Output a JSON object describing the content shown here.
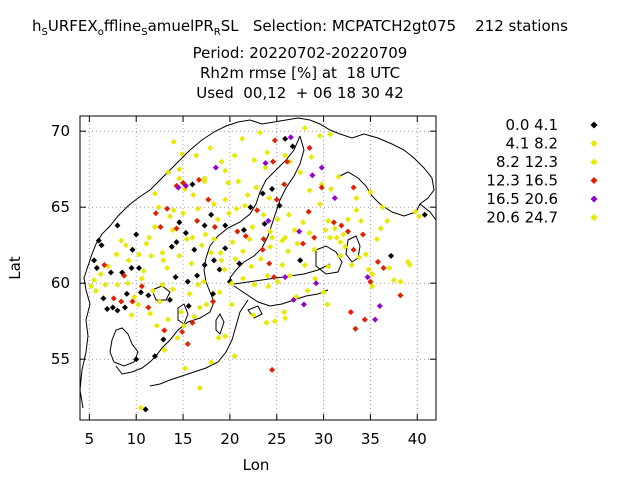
{
  "title": {
    "line1_parts": [
      "h",
      "S",
      "URFEX",
      "o",
      "ffline",
      "S",
      "amuelPR",
      "R",
      "SL   Selection: MCPATCH2gt075    212 stations"
    ],
    "line2": "Period: 20220702-20220709",
    "line3": "Rh2m rmse [%] at  18 UTC",
    "line4": "Used  00,12  + 06 18 30 42"
  },
  "chart_data": {
    "type": "scatter",
    "xlabel": "Lon",
    "ylabel": "Lat",
    "xlim": [
      4,
      42
    ],
    "ylim": [
      51,
      71
    ],
    "xticks": [
      5,
      10,
      15,
      20,
      25,
      30,
      35,
      40
    ],
    "yticks": [
      55,
      60,
      65,
      70
    ],
    "grid": true,
    "legend_position": "right",
    "series": [
      {
        "name": "0.0 4.1",
        "color": "#000000",
        "points": [
          [
            11.0,
            51.7
          ],
          [
            6.9,
            58.3
          ],
          [
            7.5,
            58.4
          ],
          [
            8.0,
            58.2
          ],
          [
            8.8,
            58.4
          ],
          [
            6.5,
            59.0
          ],
          [
            9.0,
            59.3
          ],
          [
            10.5,
            59.4
          ],
          [
            11.3,
            59.2
          ],
          [
            7.3,
            60.7
          ],
          [
            8.5,
            60.7
          ],
          [
            9.5,
            61.0
          ],
          [
            10.3,
            61.0
          ],
          [
            9.6,
            62.2
          ],
          [
            6.3,
            62.5
          ],
          [
            6.0,
            62.8
          ],
          [
            5.5,
            61.5
          ],
          [
            5.8,
            61.0
          ],
          [
            8.0,
            63.8
          ],
          [
            10.0,
            63.2
          ],
          [
            13.8,
            62.4
          ],
          [
            14.3,
            62.7
          ],
          [
            14.6,
            64.0
          ],
          [
            15.3,
            63.3
          ],
          [
            16.2,
            62.2
          ],
          [
            16.0,
            66.5
          ],
          [
            17.3,
            63.8
          ],
          [
            18.0,
            64.5
          ],
          [
            19.5,
            63.8
          ],
          [
            19.5,
            62.3
          ],
          [
            20.0,
            60.1
          ],
          [
            21.0,
            61.3
          ],
          [
            21.5,
            63.5
          ],
          [
            22.2,
            65.0
          ],
          [
            23.5,
            65.9
          ],
          [
            24.5,
            66.2
          ],
          [
            25.3,
            65.1
          ],
          [
            26.7,
            69.0
          ],
          [
            25.9,
            69.5
          ],
          [
            18.3,
            61.5
          ],
          [
            17.3,
            61.2
          ],
          [
            16.5,
            60.5
          ],
          [
            15.5,
            60.1
          ],
          [
            15.6,
            58.5
          ],
          [
            13.6,
            58.9
          ],
          [
            14.2,
            60.4
          ],
          [
            18.9,
            60.9
          ],
          [
            18.2,
            59.3
          ],
          [
            12.9,
            56.3
          ],
          [
            12.0,
            55.2
          ],
          [
            10.0,
            55.0
          ],
          [
            23.7,
            63.9
          ],
          [
            27.5,
            61.5
          ],
          [
            37.2,
            61.8
          ],
          [
            40.8,
            64.5
          ]
        ]
      },
      {
        "name": "4.1 8.2",
        "color": "#e8e800",
        "points": [
          [
            5.2,
            59.8
          ],
          [
            5.5,
            60.2
          ],
          [
            6.2,
            60.6
          ],
          [
            7.0,
            61.1
          ],
          [
            7.9,
            61.9
          ],
          [
            8.9,
            62.5
          ],
          [
            9.2,
            61.5
          ],
          [
            10.3,
            61.9
          ],
          [
            11.1,
            62.6
          ],
          [
            12.0,
            63.7
          ],
          [
            12.8,
            62.0
          ],
          [
            13.3,
            61.0
          ],
          [
            14.6,
            61.8
          ],
          [
            15.4,
            62.9
          ],
          [
            16.6,
            64.9
          ],
          [
            17.4,
            63.2
          ],
          [
            18.3,
            62.9
          ],
          [
            19.1,
            61.5
          ],
          [
            20.3,
            62.7
          ],
          [
            21.4,
            62.1
          ],
          [
            22.4,
            63.7
          ],
          [
            23.6,
            64.5
          ],
          [
            24.2,
            65.6
          ],
          [
            25.1,
            64.2
          ],
          [
            26.3,
            64.5
          ],
          [
            27.2,
            62.6
          ],
          [
            28.5,
            63.3
          ],
          [
            29.6,
            65.2
          ],
          [
            30.5,
            64.1
          ],
          [
            31.4,
            63.0
          ],
          [
            32.3,
            62.4
          ],
          [
            33.5,
            64.8
          ],
          [
            34.5,
            61.9
          ],
          [
            35.2,
            60.6
          ],
          [
            36.1,
            63.6
          ],
          [
            37.0,
            61.0
          ],
          [
            38.2,
            60.1
          ],
          [
            39.0,
            61.4
          ],
          [
            39.8,
            64.7
          ],
          [
            40.2,
            64.4
          ],
          [
            29.1,
            60.3
          ],
          [
            30.0,
            59.4
          ],
          [
            28.3,
            59.5
          ],
          [
            27.1,
            59.1
          ],
          [
            25.1,
            60.1
          ],
          [
            24.1,
            59.8
          ],
          [
            22.6,
            59.9
          ],
          [
            21.4,
            60.3
          ],
          [
            20.2,
            60.0
          ],
          [
            18.9,
            59.4
          ],
          [
            17.5,
            58.6
          ],
          [
            16.2,
            57.8
          ],
          [
            15.1,
            57.2
          ],
          [
            14.4,
            56.4
          ],
          [
            13.0,
            55.6
          ],
          [
            16.8,
            53.1
          ],
          [
            18.0,
            54.8
          ],
          [
            19.5,
            56.5
          ],
          [
            23.9,
            57.4
          ],
          [
            25.8,
            58.1
          ],
          [
            24.8,
            57.5
          ],
          [
            11.4,
            63.0
          ],
          [
            12.4,
            65.0
          ],
          [
            14.9,
            68.5
          ],
          [
            16.4,
            68.4
          ],
          [
            17.9,
            68.9
          ],
          [
            19.1,
            68.0
          ],
          [
            21.3,
            69.5
          ],
          [
            23.2,
            69.9
          ],
          [
            26.4,
            68.0
          ],
          [
            28.0,
            70.2
          ],
          [
            29.6,
            69.7
          ],
          [
            30.7,
            69.8
          ],
          [
            17.3,
            66.9
          ],
          [
            19.8,
            66.6
          ],
          [
            20.9,
            66.7
          ],
          [
            27.5,
            67.3
          ],
          [
            28.7,
            68.3
          ],
          [
            8.4,
            62.8
          ],
          [
            10.6,
            60.3
          ],
          [
            11.8,
            59.5
          ],
          [
            12.5,
            58.8
          ],
          [
            13.9,
            59.6
          ],
          [
            15.7,
            59.3
          ],
          [
            16.6,
            59.9
          ],
          [
            19.4,
            60.9
          ],
          [
            10.2,
            58.6
          ],
          [
            9.5,
            57.9
          ],
          [
            12.2,
            57.2
          ],
          [
            13.4,
            57.6
          ],
          [
            14.8,
            58.1
          ],
          [
            16.8,
            58.4
          ],
          [
            11.5,
            58.0
          ],
          [
            12.8,
            59.9
          ],
          [
            15.0,
            64.6
          ],
          [
            13.6,
            64.4
          ],
          [
            20.7,
            64.9
          ],
          [
            21.9,
            65.8
          ],
          [
            22.8,
            66.3
          ],
          [
            23.8,
            67.6
          ],
          [
            24.3,
            63.4
          ],
          [
            25.6,
            62.8
          ],
          [
            26.9,
            63.5
          ],
          [
            27.8,
            64.0
          ],
          [
            29.0,
            62.2
          ],
          [
            30.5,
            61.1
          ],
          [
            31.8,
            61.8
          ],
          [
            33.0,
            61.2
          ],
          [
            34.8,
            60.9
          ],
          [
            31.8,
            62.7
          ],
          [
            33.5,
            65.6
          ],
          [
            35.0,
            66.0
          ],
          [
            36.3,
            65.0
          ],
          [
            36.8,
            64.1
          ],
          [
            30.2,
            63.5
          ],
          [
            31.2,
            63.6
          ],
          [
            32.6,
            64.2
          ],
          [
            34.0,
            64.1
          ],
          [
            25.6,
            61.2
          ],
          [
            26.4,
            60.5
          ],
          [
            22.3,
            61.1
          ],
          [
            23.3,
            61.6
          ],
          [
            24.3,
            62.4
          ],
          [
            25.9,
            63.0
          ],
          [
            28.5,
            66.1
          ],
          [
            29.8,
            66.5
          ],
          [
            30.8,
            66.2
          ],
          [
            31.6,
            67.0
          ],
          [
            24.0,
            60.5
          ],
          [
            19.5,
            65.5
          ],
          [
            18.3,
            65.2
          ],
          [
            14.0,
            69.3
          ],
          [
            14.6,
            67.5
          ],
          [
            18.0,
            62.0
          ],
          [
            17.0,
            62.5
          ],
          [
            16.0,
            63.0
          ]
        ]
      },
      {
        "name": "8.2 12.3",
        "color": "#e8e800",
        "points": [
          [
            5.7,
            59.5
          ],
          [
            6.7,
            59.9
          ],
          [
            8.0,
            59.9
          ],
          [
            9.1,
            60.0
          ],
          [
            9.8,
            59.1
          ],
          [
            10.8,
            60.8
          ],
          [
            11.6,
            61.8
          ],
          [
            12.9,
            61.5
          ],
          [
            13.9,
            63.5
          ],
          [
            15.9,
            61.3
          ],
          [
            17.2,
            60.1
          ],
          [
            19.0,
            62.0
          ],
          [
            20.6,
            61.6
          ],
          [
            22.1,
            62.9
          ],
          [
            24.5,
            63.0
          ],
          [
            26.2,
            62.1
          ],
          [
            28.0,
            61.2
          ],
          [
            30.7,
            63.0
          ],
          [
            32.1,
            63.2
          ],
          [
            33.8,
            61.7
          ],
          [
            35.7,
            62.9
          ],
          [
            14.0,
            64.8
          ],
          [
            15.2,
            66.2
          ],
          [
            17.3,
            66.7
          ],
          [
            19.5,
            67.4
          ],
          [
            20.5,
            68.4
          ],
          [
            22.6,
            68.1
          ],
          [
            24.0,
            68.6
          ],
          [
            25.9,
            68.4
          ],
          [
            12.0,
            65.9
          ],
          [
            13.4,
            67.3
          ],
          [
            14.6,
            66.9
          ],
          [
            16.1,
            65.8
          ],
          [
            18.7,
            64.2
          ],
          [
            19.9,
            64.6
          ],
          [
            21.6,
            65.1
          ]
        ]
      },
      {
        "name": "12.3 16.5",
        "color": "#e02000",
        "points": [
          [
            6.6,
            61.2
          ],
          [
            7.6,
            59.0
          ],
          [
            8.4,
            58.8
          ],
          [
            9.6,
            58.8
          ],
          [
            10.6,
            59.8
          ],
          [
            8.7,
            60.5
          ],
          [
            12.6,
            63.7
          ],
          [
            13.3,
            64.9
          ],
          [
            14.3,
            63.6
          ],
          [
            15.0,
            66.6
          ],
          [
            16.7,
            66.8
          ],
          [
            17.7,
            65.5
          ],
          [
            18.4,
            63.7
          ],
          [
            20.8,
            63.4
          ],
          [
            21.7,
            63.1
          ],
          [
            22.9,
            64.8
          ],
          [
            23.6,
            62.9
          ],
          [
            24.2,
            61.3
          ],
          [
            24.7,
            60.4
          ],
          [
            25.0,
            65.5
          ],
          [
            25.8,
            66.5
          ],
          [
            26.1,
            68.0
          ],
          [
            28.4,
            64.7
          ],
          [
            29.0,
            63.0
          ],
          [
            29.8,
            66.3
          ],
          [
            31.1,
            64.0
          ],
          [
            31.9,
            63.8
          ],
          [
            32.6,
            63.4
          ],
          [
            33.2,
            66.3
          ],
          [
            34.2,
            63.2
          ],
          [
            35.0,
            60.1
          ],
          [
            35.8,
            61.4
          ],
          [
            36.4,
            61.0
          ],
          [
            32.9,
            58.1
          ],
          [
            33.4,
            57.0
          ],
          [
            34.4,
            57.6
          ],
          [
            38.2,
            59.2
          ],
          [
            24.5,
            54.3
          ],
          [
            18.2,
            58.8
          ],
          [
            16.0,
            57.4
          ],
          [
            14.9,
            56.8
          ],
          [
            15.5,
            56.0
          ],
          [
            13.0,
            56.9
          ],
          [
            11.3,
            58.4
          ],
          [
            12.1,
            64.6
          ],
          [
            14.3,
            66.4
          ],
          [
            24.6,
            68.0
          ],
          [
            28.5,
            68.9
          ],
          [
            24.8,
            69.4
          ],
          [
            23.5,
            62.2
          ],
          [
            27.8,
            62.6
          ],
          [
            33.2,
            62.2
          ],
          [
            16.5,
            64.1
          ]
        ]
      },
      {
        "name": "16.5 20.6",
        "color": "#9400d3",
        "points": [
          [
            14.5,
            66.3
          ],
          [
            15.3,
            66.4
          ],
          [
            18.5,
            67.6
          ],
          [
            23.8,
            67.9
          ],
          [
            26.5,
            69.6
          ],
          [
            28.8,
            67.1
          ],
          [
            29.8,
            67.6
          ],
          [
            31.2,
            65.6
          ],
          [
            27.4,
            63.4
          ],
          [
            34.7,
            60.4
          ],
          [
            36.0,
            58.5
          ],
          [
            35.5,
            57.6
          ],
          [
            29.2,
            60.0
          ],
          [
            26.8,
            58.9
          ],
          [
            27.9,
            58.6
          ],
          [
            25.9,
            60.4
          ],
          [
            24.1,
            64.1
          ]
        ]
      },
      {
        "name": "20.6 24.7",
        "color": "#e8e800",
        "points": [
          [
            10.5,
            51.8
          ],
          [
            15.2,
            54.4
          ],
          [
            20.5,
            55.2
          ],
          [
            18.8,
            56.4
          ],
          [
            20.2,
            58.6
          ],
          [
            22.5,
            57.9
          ],
          [
            25.9,
            57.7
          ],
          [
            30.4,
            58.6
          ],
          [
            35.2,
            59.8
          ],
          [
            37.5,
            60.2
          ],
          [
            39.2,
            61.2
          ]
        ]
      }
    ]
  }
}
